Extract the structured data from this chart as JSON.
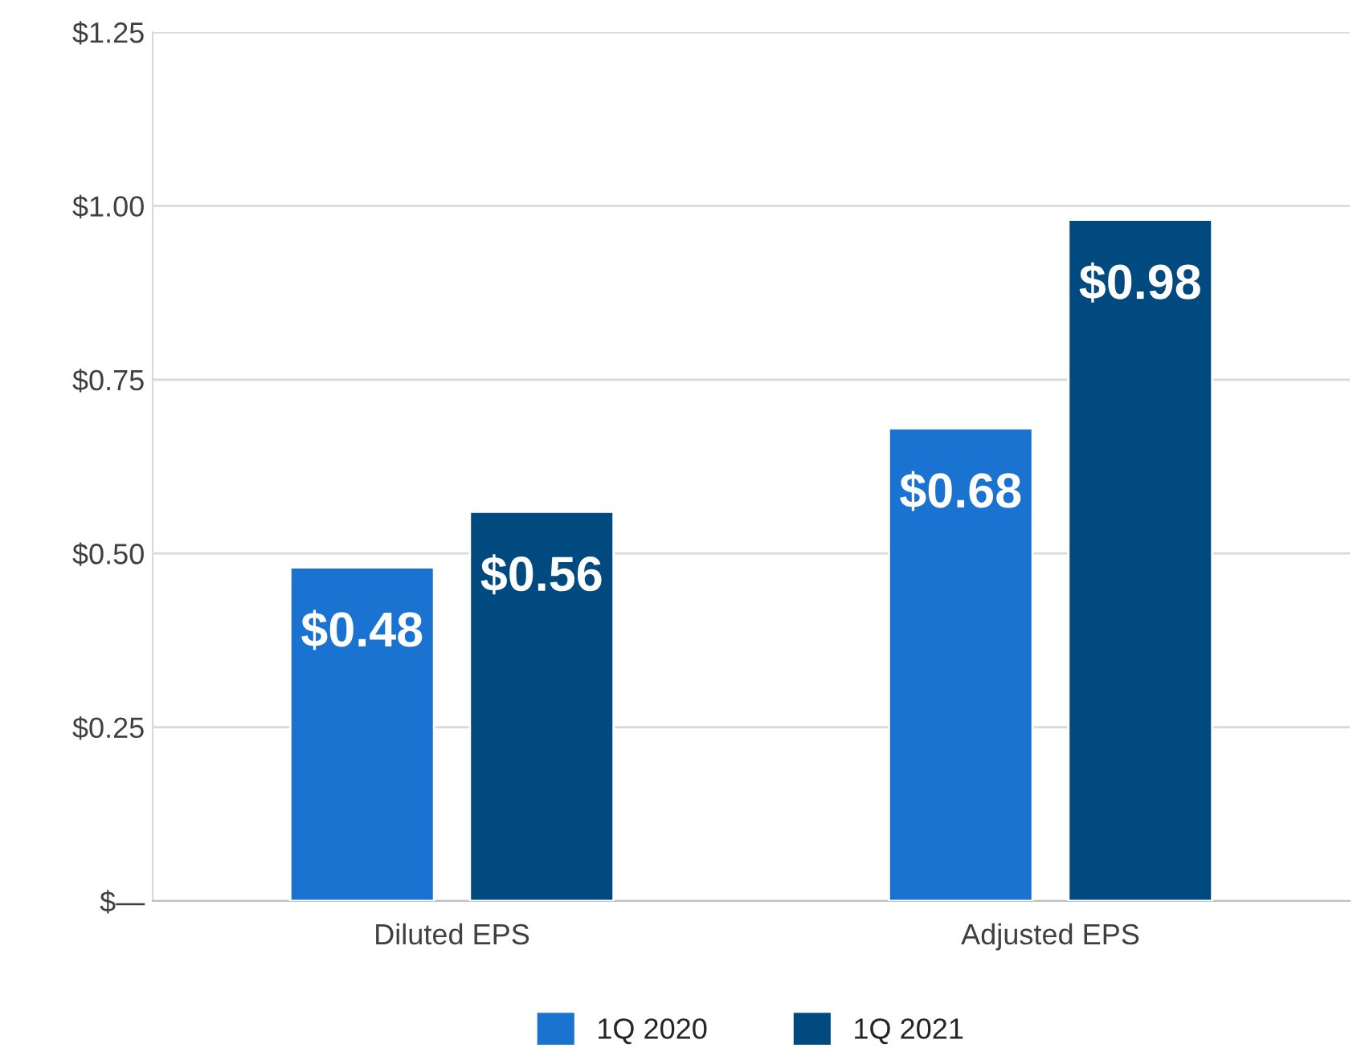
{
  "chart_data": {
    "type": "bar",
    "categories": [
      "Diluted EPS",
      "Adjusted EPS"
    ],
    "series": [
      {
        "name": "1Q 2020",
        "color": "#1a73d0",
        "values": [
          0.48,
          0.68
        ],
        "value_labels": [
          "$0.48",
          "$0.68"
        ]
      },
      {
        "name": "1Q 2021",
        "color": "#004a7f",
        "values": [
          0.56,
          0.98
        ],
        "value_labels": [
          "$0.56",
          "$0.98"
        ]
      }
    ],
    "ylim": [
      0,
      1.25
    ],
    "yticks": [
      {
        "value": 0,
        "label": "$—"
      },
      {
        "value": 0.25,
        "label": "$0.25"
      },
      {
        "value": 0.5,
        "label": "$0.50"
      },
      {
        "value": 0.75,
        "label": "$0.75"
      },
      {
        "value": 1.0,
        "label": "$1.00"
      },
      {
        "value": 1.25,
        "label": "$1.25"
      }
    ],
    "grid": "y",
    "legend": "bottom"
  }
}
